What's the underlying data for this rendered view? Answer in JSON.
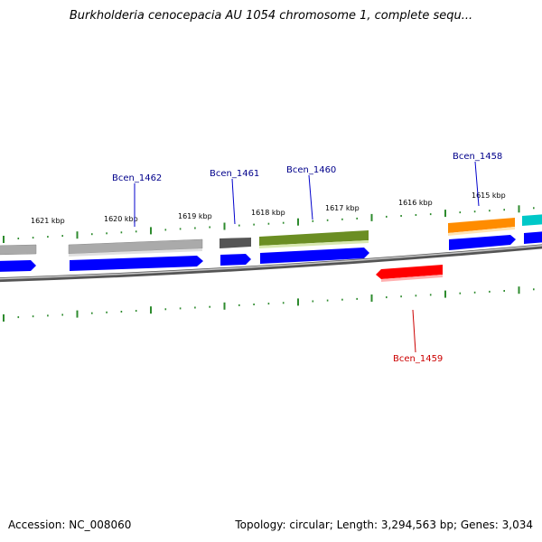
{
  "title": "Burkholderia cenocepacia AU 1054 chromosome 1, complete sequ...",
  "footer": {
    "accession": "Accession: NC_008060",
    "summary": "Topology: circular; Length: 3,294,563 bp; Genes: 3,034"
  },
  "colors": {
    "backbone": "#7f7f7f",
    "tick": "#2e8b2e",
    "cds_forward": "#0000ff",
    "label_forward": "#00008b",
    "label_reverse": "#cc0000",
    "reverse_gene": "#ff0000"
  },
  "tick_labels": [
    {
      "text": "1621 kbp"
    },
    {
      "text": "1620 kbp"
    },
    {
      "text": "1619 kbp"
    },
    {
      "text": "1618 kbp"
    },
    {
      "text": "1617 kbp"
    },
    {
      "text": "1616 kbp"
    },
    {
      "text": "1615 kbp"
    }
  ],
  "gene_labels": [
    {
      "text": "Bcen_1462",
      "strand": "forward"
    },
    {
      "text": "Bcen_1461",
      "strand": "forward"
    },
    {
      "text": "Bcen_1460",
      "strand": "forward"
    },
    {
      "text": "Bcen_1458",
      "strand": "forward"
    },
    {
      "text": "Bcen_1459",
      "strand": "reverse"
    }
  ],
  "features": [
    {
      "name": "gene-block-left",
      "color": "#aaaaaa"
    },
    {
      "name": "gene-block-1462",
      "color": "#aaaaaa"
    },
    {
      "name": "gene-block-1461",
      "color": "#555555"
    },
    {
      "name": "gene-block-1460",
      "color": "#6b8e23"
    },
    {
      "name": "gene-block-1458",
      "color": "#ff8c00"
    },
    {
      "name": "gene-block-right",
      "color": "#00c8c8"
    }
  ]
}
